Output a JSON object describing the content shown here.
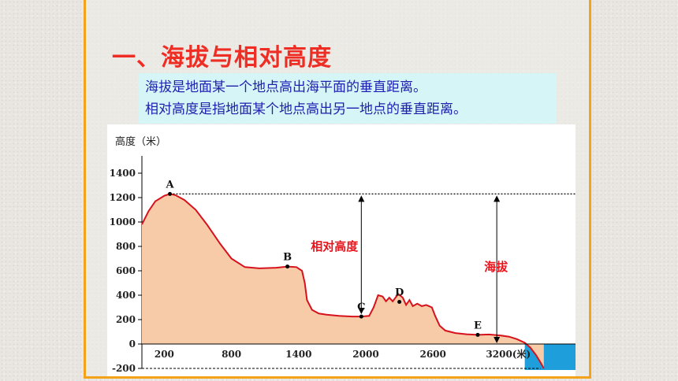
{
  "title": "一、海拔与相对高度",
  "definitions": [
    "海拔是地面某一个地点高出海平面的垂直距离。",
    "相对高度是指地面某个地点高出另一地点的垂直距离。"
  ],
  "chart_data": {
    "type": "area",
    "ylabel": "高度（米）",
    "xlabel": "3200(米)",
    "yticks": [
      1400,
      1200,
      1000,
      800,
      600,
      400,
      200,
      0,
      -200
    ],
    "xticks": [
      "200",
      "800",
      "1400",
      "2000",
      "2600"
    ],
    "ylim": [
      -200,
      1400
    ],
    "xlim": [
      0,
      3680
    ],
    "profile": [
      [
        0,
        980
      ],
      [
        60,
        1090
      ],
      [
        120,
        1170
      ],
      [
        200,
        1215
      ],
      [
        250,
        1230
      ],
      [
        300,
        1220
      ],
      [
        380,
        1180
      ],
      [
        480,
        1100
      ],
      [
        580,
        980
      ],
      [
        700,
        820
      ],
      [
        800,
        700
      ],
      [
        920,
        630
      ],
      [
        1050,
        620
      ],
      [
        1200,
        625
      ],
      [
        1300,
        635
      ],
      [
        1380,
        630
      ],
      [
        1430,
        600
      ],
      [
        1455,
        500
      ],
      [
        1475,
        360
      ],
      [
        1520,
        280
      ],
      [
        1580,
        250
      ],
      [
        1650,
        240
      ],
      [
        1760,
        230
      ],
      [
        1880,
        225
      ],
      [
        1960,
        225
      ],
      [
        2030,
        230
      ],
      [
        2070,
        300
      ],
      [
        2110,
        400
      ],
      [
        2150,
        390
      ],
      [
        2180,
        350
      ],
      [
        2210,
        380
      ],
      [
        2240,
        350
      ],
      [
        2290,
        410
      ],
      [
        2330,
        380
      ],
      [
        2360,
        320
      ],
      [
        2390,
        360
      ],
      [
        2420,
        310
      ],
      [
        2460,
        330
      ],
      [
        2500,
        310
      ],
      [
        2540,
        320
      ],
      [
        2590,
        300
      ],
      [
        2620,
        230
      ],
      [
        2660,
        150
      ],
      [
        2710,
        110
      ],
      [
        2800,
        90
      ],
      [
        2900,
        80
      ],
      [
        3000,
        75
      ],
      [
        3100,
        78
      ],
      [
        3200,
        70
      ],
      [
        3280,
        60
      ],
      [
        3350,
        40
      ],
      [
        3420,
        10
      ],
      [
        3470,
        -30
      ],
      [
        3520,
        -90
      ],
      [
        3560,
        -150
      ],
      [
        3590,
        -200
      ]
    ],
    "points": [
      {
        "label": "A",
        "x": 250,
        "y": 1230
      },
      {
        "label": "B",
        "x": 1300,
        "y": 635
      },
      {
        "label": "C",
        "x": 1960,
        "y": 225
      },
      {
        "label": "D",
        "x": 2300,
        "y": 345
      },
      {
        "label": "E",
        "x": 3000,
        "y": 75
      }
    ],
    "reference_line_y": 1230,
    "annotations": {
      "relative_height": "相对高度",
      "altitude": "海拔"
    },
    "colors": {
      "land": "#f8cba8",
      "outline": "#d6121c",
      "sea": "#1e9fdc",
      "annotation": "#e8141c"
    }
  }
}
